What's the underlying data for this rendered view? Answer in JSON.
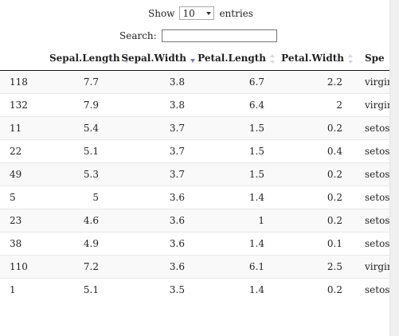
{
  "length_menu": {
    "prefix": "Show",
    "selected": "10",
    "suffix": "entries"
  },
  "search": {
    "label": "Search:",
    "value": ""
  },
  "table": {
    "columns": [
      {
        "label": "",
        "sort": "none"
      },
      {
        "label": "Sepal.Length",
        "sort": "both"
      },
      {
        "label": "Sepal.Width",
        "sort": "desc"
      },
      {
        "label": "Petal.Length",
        "sort": "both"
      },
      {
        "label": "Petal.Width",
        "sort": "both"
      },
      {
        "label": "Spe",
        "sort": "none"
      }
    ],
    "rows": [
      [
        "118",
        "7.7",
        "3.8",
        "6.7",
        "2.2",
        "virgir"
      ],
      [
        "132",
        "7.9",
        "3.8",
        "6.4",
        "2",
        "virgir"
      ],
      [
        "11",
        "5.4",
        "3.7",
        "1.5",
        "0.2",
        "setos"
      ],
      [
        "22",
        "5.1",
        "3.7",
        "1.5",
        "0.4",
        "setos"
      ],
      [
        "49",
        "5.3",
        "3.7",
        "1.5",
        "0.2",
        "setos"
      ],
      [
        "5",
        "5",
        "3.6",
        "1.4",
        "0.2",
        "setos"
      ],
      [
        "23",
        "4.6",
        "3.6",
        "1",
        "0.2",
        "setos"
      ],
      [
        "38",
        "4.9",
        "3.6",
        "1.4",
        "0.1",
        "setos"
      ],
      [
        "110",
        "7.2",
        "3.6",
        "6.1",
        "2.5",
        "virgir"
      ],
      [
        "1",
        "5.1",
        "3.5",
        "1.4",
        "0.2",
        "setos"
      ]
    ]
  }
}
